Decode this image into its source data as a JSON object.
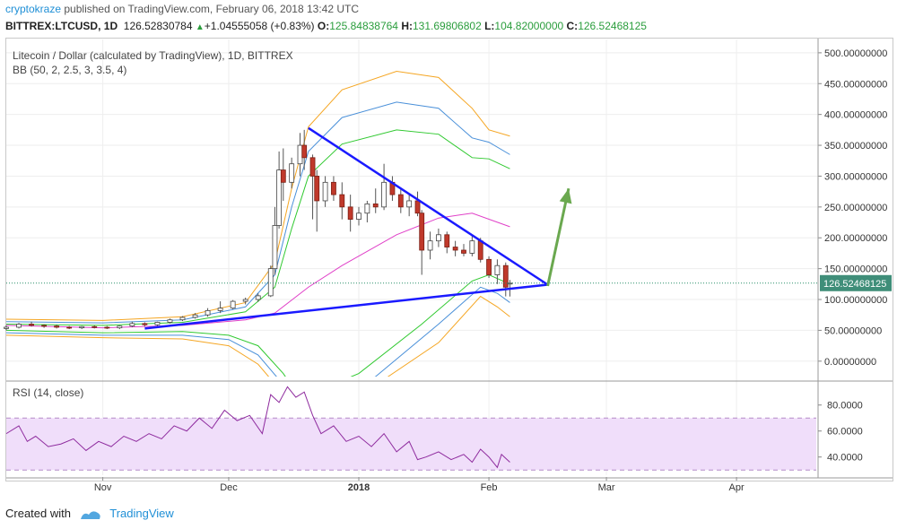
{
  "header": {
    "author": "cryptokraze",
    "published": "published on TradingView.com, February 06, 2018 13:42 UTC",
    "symbol": "BITTREX:LTCUSD, 1D",
    "last": "126.52830784",
    "change": "+1.04555058 (+0.83%)",
    "o_label": "O:",
    "o": "125.84838764",
    "h_label": "H:",
    "h": "131.69806802",
    "l_label": "L:",
    "l": "104.82000000",
    "c_label": "C:",
    "c": "126.52468125"
  },
  "chart_data": [
    {
      "type": "line",
      "title": "Litecoin / Dollar (calculated by TradingView), 1D, BITTREX",
      "indicator_label": "BB (50, 2, 2.5, 3, 3.5, 4)",
      "last_price_label": "126.52468125",
      "ylim": [
        -25,
        510
      ],
      "y_ticks": [
        "500.00000000",
        "450.00000000",
        "400.00000000",
        "350.00000000",
        "300.00000000",
        "250.00000000",
        "200.00000000",
        "150.00000000",
        "100.00000000",
        "50.00000000",
        "0.00000000"
      ],
      "y_tick_values": [
        500,
        450,
        400,
        350,
        300,
        250,
        200,
        150,
        100,
        50,
        0
      ],
      "x_ticks": [
        "Nov",
        "Dec",
        "2018",
        "Feb",
        "Mar",
        "Apr"
      ],
      "x_tick_dates": [
        "2017-11-01",
        "2017-12-01",
        "2018-01-01",
        "2018-02-01",
        "2018-03-01",
        "2018-04-01"
      ],
      "x_range": [
        "2017-10-09",
        "2018-04-20"
      ],
      "grid": true,
      "candles": [
        {
          "date": "2017-10-09",
          "o": 53,
          "h": 58,
          "l": 50,
          "c": 55
        },
        {
          "date": "2017-10-12",
          "o": 55,
          "h": 62,
          "l": 53,
          "c": 60
        },
        {
          "date": "2017-10-15",
          "o": 60,
          "h": 64,
          "l": 56,
          "c": 58
        },
        {
          "date": "2017-10-18",
          "o": 58,
          "h": 60,
          "l": 54,
          "c": 57
        },
        {
          "date": "2017-10-21",
          "o": 57,
          "h": 59,
          "l": 53,
          "c": 55
        },
        {
          "date": "2017-10-24",
          "o": 55,
          "h": 57,
          "l": 52,
          "c": 54
        },
        {
          "date": "2017-10-27",
          "o": 54,
          "h": 57,
          "l": 52,
          "c": 56
        },
        {
          "date": "2017-10-30",
          "o": 56,
          "h": 58,
          "l": 53,
          "c": 55
        },
        {
          "date": "2017-11-02",
          "o": 55,
          "h": 57,
          "l": 52,
          "c": 54
        },
        {
          "date": "2017-11-05",
          "o": 54,
          "h": 58,
          "l": 52,
          "c": 57
        },
        {
          "date": "2017-11-08",
          "o": 57,
          "h": 64,
          "l": 55,
          "c": 61
        },
        {
          "date": "2017-11-11",
          "o": 61,
          "h": 63,
          "l": 56,
          "c": 59
        },
        {
          "date": "2017-11-14",
          "o": 59,
          "h": 64,
          "l": 57,
          "c": 63
        },
        {
          "date": "2017-11-17",
          "o": 63,
          "h": 69,
          "l": 61,
          "c": 67
        },
        {
          "date": "2017-11-20",
          "o": 67,
          "h": 73,
          "l": 65,
          "c": 71
        },
        {
          "date": "2017-11-23",
          "o": 71,
          "h": 78,
          "l": 69,
          "c": 75
        },
        {
          "date": "2017-11-26",
          "o": 75,
          "h": 86,
          "l": 72,
          "c": 82
        },
        {
          "date": "2017-11-29",
          "o": 82,
          "h": 97,
          "l": 78,
          "c": 86
        },
        {
          "date": "2017-12-02",
          "o": 86,
          "h": 99,
          "l": 84,
          "c": 97
        },
        {
          "date": "2017-12-05",
          "o": 97,
          "h": 103,
          "l": 92,
          "c": 100
        },
        {
          "date": "2017-12-08",
          "o": 100,
          "h": 110,
          "l": 96,
          "c": 106
        },
        {
          "date": "2017-12-11",
          "o": 106,
          "h": 155,
          "l": 104,
          "c": 150
        },
        {
          "date": "2017-12-12",
          "o": 150,
          "h": 250,
          "l": 140,
          "c": 220
        },
        {
          "date": "2017-12-13",
          "o": 220,
          "h": 340,
          "l": 215,
          "c": 310
        },
        {
          "date": "2017-12-14",
          "o": 310,
          "h": 345,
          "l": 260,
          "c": 290
        },
        {
          "date": "2017-12-16",
          "o": 290,
          "h": 330,
          "l": 280,
          "c": 320
        },
        {
          "date": "2017-12-18",
          "o": 320,
          "h": 370,
          "l": 300,
          "c": 350
        },
        {
          "date": "2017-12-19",
          "o": 350,
          "h": 375,
          "l": 310,
          "c": 330
        },
        {
          "date": "2017-12-21",
          "o": 330,
          "h": 335,
          "l": 230,
          "c": 300
        },
        {
          "date": "2017-12-22",
          "o": 300,
          "h": 310,
          "l": 210,
          "c": 260
        },
        {
          "date": "2017-12-24",
          "o": 260,
          "h": 300,
          "l": 250,
          "c": 290
        },
        {
          "date": "2017-12-26",
          "o": 290,
          "h": 300,
          "l": 260,
          "c": 270
        },
        {
          "date": "2017-12-28",
          "o": 270,
          "h": 290,
          "l": 230,
          "c": 250
        },
        {
          "date": "2017-12-30",
          "o": 250,
          "h": 270,
          "l": 210,
          "c": 230
        },
        {
          "date": "2018-01-01",
          "o": 230,
          "h": 250,
          "l": 220,
          "c": 240
        },
        {
          "date": "2018-01-03",
          "o": 240,
          "h": 260,
          "l": 225,
          "c": 255
        },
        {
          "date": "2018-01-05",
          "o": 255,
          "h": 280,
          "l": 240,
          "c": 250
        },
        {
          "date": "2018-01-07",
          "o": 250,
          "h": 320,
          "l": 245,
          "c": 290
        },
        {
          "date": "2018-01-09",
          "o": 290,
          "h": 300,
          "l": 260,
          "c": 270
        },
        {
          "date": "2018-01-11",
          "o": 270,
          "h": 280,
          "l": 240,
          "c": 250
        },
        {
          "date": "2018-01-13",
          "o": 250,
          "h": 270,
          "l": 235,
          "c": 260
        },
        {
          "date": "2018-01-15",
          "o": 260,
          "h": 275,
          "l": 235,
          "c": 240
        },
        {
          "date": "2018-01-16",
          "o": 240,
          "h": 245,
          "l": 140,
          "c": 180
        },
        {
          "date": "2018-01-18",
          "o": 180,
          "h": 210,
          "l": 165,
          "c": 195
        },
        {
          "date": "2018-01-20",
          "o": 195,
          "h": 215,
          "l": 185,
          "c": 205
        },
        {
          "date": "2018-01-22",
          "o": 205,
          "h": 210,
          "l": 175,
          "c": 185
        },
        {
          "date": "2018-01-24",
          "o": 185,
          "h": 195,
          "l": 170,
          "c": 180
        },
        {
          "date": "2018-01-26",
          "o": 180,
          "h": 190,
          "l": 170,
          "c": 175
        },
        {
          "date": "2018-01-28",
          "o": 175,
          "h": 205,
          "l": 170,
          "c": 195
        },
        {
          "date": "2018-01-30",
          "o": 195,
          "h": 200,
          "l": 160,
          "c": 165
        },
        {
          "date": "2018-02-01",
          "o": 165,
          "h": 170,
          "l": 135,
          "c": 140
        },
        {
          "date": "2018-02-03",
          "o": 140,
          "h": 165,
          "l": 125,
          "c": 155
        },
        {
          "date": "2018-02-05",
          "o": 155,
          "h": 160,
          "l": 105,
          "c": 120
        },
        {
          "date": "2018-02-06",
          "o": 125.85,
          "h": 131.7,
          "l": 104.82,
          "c": 126.52
        }
      ],
      "bands": [
        {
          "name": "upper-4",
          "color": "#f5a623",
          "points": [
            [
              "2017-10-09",
              68
            ],
            [
              "2017-11-01",
              66
            ],
            [
              "2017-11-20",
              72
            ],
            [
              "2017-12-05",
              95
            ],
            [
              "2017-12-12",
              160
            ],
            [
              "2017-12-16",
              280
            ],
            [
              "2017-12-20",
              380
            ],
            [
              "2017-12-28",
              440
            ],
            [
              "2018-01-10",
              470
            ],
            [
              "2018-01-20",
              460
            ],
            [
              "2018-01-28",
              410
            ],
            [
              "2018-02-01",
              375
            ],
            [
              "2018-02-06",
              365
            ]
          ]
        },
        {
          "name": "upper-3",
          "color": "#4a90d9",
          "points": [
            [
              "2017-10-09",
              64
            ],
            [
              "2017-11-01",
              62
            ],
            [
              "2017-11-20",
              67
            ],
            [
              "2017-12-05",
              88
            ],
            [
              "2017-12-12",
              140
            ],
            [
              "2017-12-16",
              250
            ],
            [
              "2017-12-20",
              340
            ],
            [
              "2017-12-28",
              395
            ],
            [
              "2018-01-10",
              420
            ],
            [
              "2018-01-20",
              410
            ],
            [
              "2018-01-28",
              362
            ],
            [
              "2018-02-01",
              355
            ],
            [
              "2018-02-06",
              335
            ]
          ]
        },
        {
          "name": "upper-2",
          "color": "#30c930",
          "points": [
            [
              "2017-10-09",
              60
            ],
            [
              "2017-11-01",
              58
            ],
            [
              "2017-11-20",
              63
            ],
            [
              "2017-12-05",
              80
            ],
            [
              "2017-12-12",
              120
            ],
            [
              "2017-12-16",
              215
            ],
            [
              "2017-12-20",
              300
            ],
            [
              "2017-12-28",
              352
            ],
            [
              "2018-01-10",
              375
            ],
            [
              "2018-01-20",
              368
            ],
            [
              "2018-01-28",
              330
            ],
            [
              "2018-02-01",
              328
            ],
            [
              "2018-02-06",
              312
            ]
          ]
        },
        {
          "name": "basis",
          "color": "#e040c8",
          "points": [
            [
              "2017-10-09",
              58
            ],
            [
              "2017-11-01",
              54
            ],
            [
              "2017-11-20",
              58
            ],
            [
              "2017-12-05",
              67
            ],
            [
              "2017-12-12",
              78
            ],
            [
              "2017-12-20",
              120
            ],
            [
              "2017-12-28",
              155
            ],
            [
              "2018-01-10",
              205
            ],
            [
              "2018-01-20",
              232
            ],
            [
              "2018-01-28",
              240
            ],
            [
              "2018-02-06",
              218
            ]
          ]
        },
        {
          "name": "lower-2",
          "color": "#30c930",
          "points": [
            [
              "2017-10-09",
              50
            ],
            [
              "2017-11-01",
              46
            ],
            [
              "2017-11-20",
              48
            ],
            [
              "2017-12-01",
              42
            ],
            [
              "2017-12-08",
              25
            ],
            [
              "2017-12-14",
              -20
            ],
            [
              "2017-12-18",
              -60
            ],
            [
              "2018-01-01",
              -20
            ],
            [
              "2018-01-16",
              60
            ],
            [
              "2018-01-28",
              130
            ],
            [
              "2018-02-01",
              140
            ],
            [
              "2018-02-06",
              125
            ]
          ]
        },
        {
          "name": "lower-3",
          "color": "#4a90d9",
          "points": [
            [
              "2017-10-09",
              46
            ],
            [
              "2017-11-01",
              42
            ],
            [
              "2017-11-20",
              42
            ],
            [
              "2017-12-01",
              35
            ],
            [
              "2017-12-08",
              10
            ],
            [
              "2017-12-13",
              -30
            ],
            [
              "2017-12-18",
              -90
            ],
            [
              "2018-01-05",
              -25
            ],
            [
              "2018-01-20",
              60
            ],
            [
              "2018-01-30",
              120
            ],
            [
              "2018-02-03",
              110
            ],
            [
              "2018-02-06",
              95
            ]
          ]
        },
        {
          "name": "lower-4",
          "color": "#f5a623",
          "points": [
            [
              "2017-10-09",
              42
            ],
            [
              "2017-11-01",
              38
            ],
            [
              "2017-11-20",
              36
            ],
            [
              "2017-12-01",
              25
            ],
            [
              "2017-12-08",
              -5
            ],
            [
              "2017-12-13",
              -45
            ],
            [
              "2017-12-18",
              -120
            ],
            [
              "2018-01-08",
              -25
            ],
            [
              "2018-01-20",
              30
            ],
            [
              "2018-01-30",
              105
            ],
            [
              "2018-02-03",
              88
            ],
            [
              "2018-02-06",
              72
            ]
          ]
        }
      ],
      "trendlines": [
        {
          "color": "#1a1aff",
          "from": [
            "2017-11-11",
            53
          ],
          "to": [
            "2018-02-15",
            124
          ]
        },
        {
          "color": "#1a1aff",
          "from": [
            "2017-12-20",
            378
          ],
          "to": [
            "2018-02-15",
            124
          ]
        }
      ],
      "arrow": {
        "color": "#6aa84f",
        "from": [
          "2018-02-15",
          122
        ],
        "to": [
          "2018-02-20",
          280
        ]
      },
      "current_price_line": 126.52
    },
    {
      "type": "line",
      "title": "RSI (14, close)",
      "ylim": [
        26,
        95
      ],
      "y_ticks": [
        "80.0000",
        "60.0000",
        "40.0000"
      ],
      "y_tick_values": [
        80,
        60,
        40
      ],
      "band": [
        30,
        70
      ],
      "band_color": "#f0defa",
      "series": [
        {
          "color": "#8e2b9e",
          "x": [
            "2017-10-09",
            "2017-10-12",
            "2017-10-14",
            "2017-10-16",
            "2017-10-19",
            "2017-10-22",
            "2017-10-25",
            "2017-10-28",
            "2017-10-31",
            "2017-11-03",
            "2017-11-06",
            "2017-11-09",
            "2017-11-12",
            "2017-11-15",
            "2017-11-18",
            "2017-11-21",
            "2017-11-24",
            "2017-11-27",
            "2017-11-30",
            "2017-12-03",
            "2017-12-06",
            "2017-12-09",
            "2017-12-11",
            "2017-12-13",
            "2017-12-15",
            "2017-12-17",
            "2017-12-19",
            "2017-12-21",
            "2017-12-23",
            "2017-12-26",
            "2017-12-29",
            "2018-01-01",
            "2018-01-04",
            "2018-01-07",
            "2018-01-10",
            "2018-01-13",
            "2018-01-15",
            "2018-01-17",
            "2018-01-20",
            "2018-01-23",
            "2018-01-26",
            "2018-01-28",
            "2018-01-30",
            "2018-02-01",
            "2018-02-03",
            "2018-02-04",
            "2018-02-06"
          ],
          "values": [
            58,
            64,
            52,
            56,
            48,
            50,
            54,
            45,
            52,
            48,
            56,
            52,
            58,
            54,
            64,
            60,
            70,
            62,
            76,
            68,
            72,
            58,
            88,
            82,
            94,
            86,
            90,
            72,
            58,
            64,
            52,
            56,
            48,
            58,
            44,
            52,
            38,
            40,
            44,
            38,
            42,
            36,
            46,
            40,
            32,
            42,
            36
          ]
        }
      ]
    }
  ],
  "footer": {
    "created_with": "Created with",
    "brand": "TradingView"
  }
}
